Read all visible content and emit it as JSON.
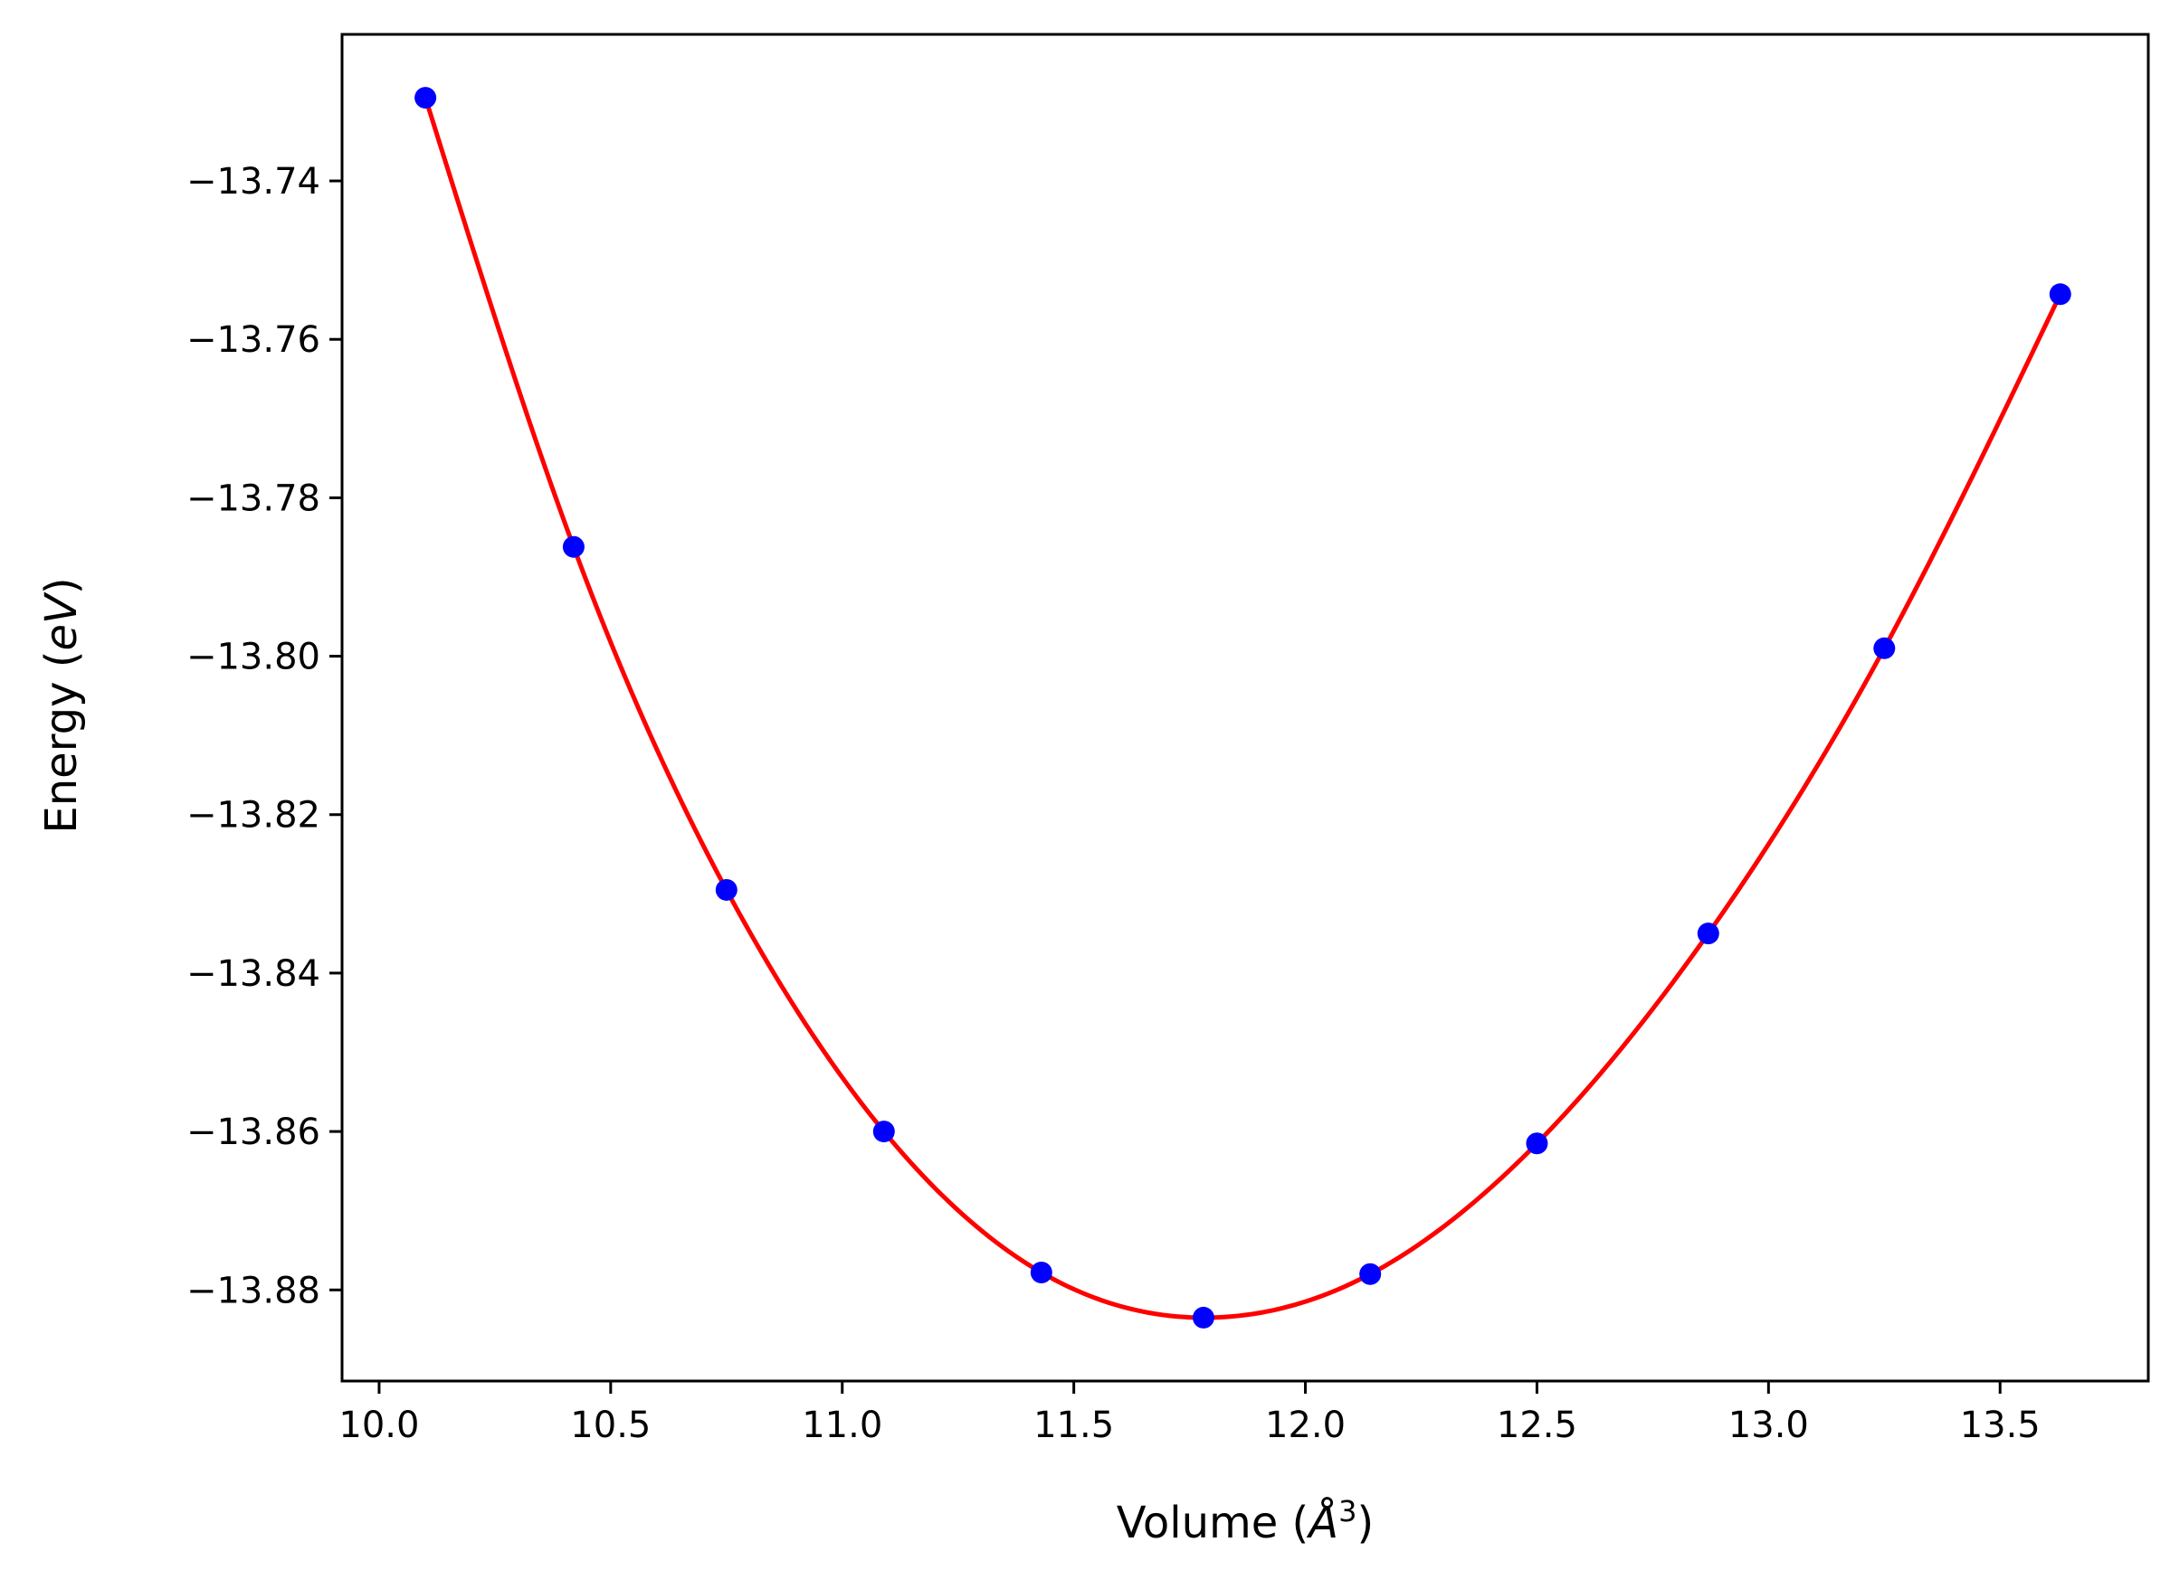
{
  "chart_data": {
    "type": "scatter",
    "xlabel": {
      "prefix": "Volume (",
      "italic": "Å",
      "superscript": "3",
      "suffix": ")"
    },
    "ylabel": {
      "prefix": "Energy (",
      "italic": "eV",
      "suffix": ")"
    },
    "xlim": [
      9.92,
      13.82
    ],
    "ylim": [
      -13.8915,
      -13.7215
    ],
    "x_ticks": [
      10.0,
      10.5,
      11.0,
      11.5,
      12.0,
      12.5,
      13.0,
      13.5
    ],
    "x_tick_labels": [
      "10.0",
      "10.5",
      "11.0",
      "11.5",
      "12.0",
      "12.5",
      "13.0",
      "13.5"
    ],
    "y_ticks": [
      -13.74,
      -13.76,
      -13.78,
      -13.8,
      -13.82,
      -13.84,
      -13.86,
      -13.88
    ],
    "y_tick_labels": [
      "−13.74",
      "−13.76",
      "−13.78",
      "−13.80",
      "−13.82",
      "−13.84",
      "−13.86",
      "−13.88"
    ],
    "grid": false,
    "series": [
      {
        "kind": "points",
        "color": "#0000ff",
        "x": [
          10.1,
          10.42,
          10.75,
          11.09,
          11.43,
          11.78,
          12.14,
          12.5,
          12.87,
          13.25,
          13.63
        ],
        "y": [
          -13.7295,
          -13.7862,
          -13.8295,
          -13.86,
          -13.8778,
          -13.8835,
          -13.878,
          -13.8615,
          -13.835,
          -13.799,
          -13.7543
        ]
      },
      {
        "kind": "fit-curve",
        "color": "#ff0000",
        "x": [
          10.1,
          10.42,
          10.75,
          11.09,
          11.43,
          11.78,
          12.14,
          12.5,
          12.87,
          13.25,
          13.63
        ],
        "y": [
          -13.7295,
          -13.7862,
          -13.8295,
          -13.86,
          -13.8778,
          -13.8835,
          -13.878,
          -13.8615,
          -13.835,
          -13.799,
          -13.7543
        ]
      }
    ]
  }
}
